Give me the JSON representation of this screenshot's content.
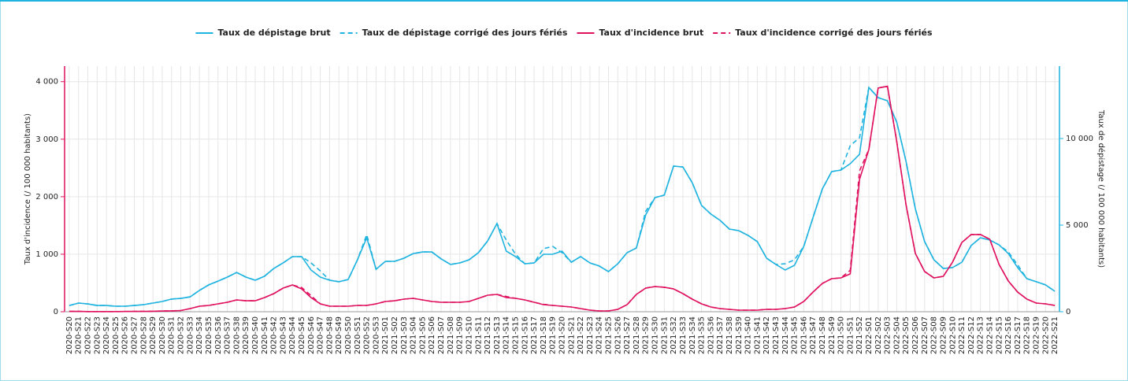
{
  "chart_data": {
    "type": "line",
    "y_label": "Taux d'incidence (/ 100 000 habitants)",
    "y2_label": "Taux de dépistage (/ 100 000 habitants)",
    "categories": [
      "2020-S20",
      "2020-S21",
      "2020-S22",
      "2020-S23",
      "2020-S24",
      "2020-S25",
      "2020-S26",
      "2020-S27",
      "2020-S28",
      "2020-S29",
      "2020-S30",
      "2020-S31",
      "2020-S32",
      "2020-S33",
      "2020-S34",
      "2020-S35",
      "2020-S36",
      "2020-S37",
      "2020-S38",
      "2020-S39",
      "2020-S40",
      "2020-S41",
      "2020-S42",
      "2020-S43",
      "2020-S44",
      "2020-S45",
      "2020-S46",
      "2020-S47",
      "2020-S48",
      "2020-S49",
      "2020-S50",
      "2020-S51",
      "2020-S52",
      "2020-S53",
      "2021-S01",
      "2021-S02",
      "2021-S03",
      "2021-S04",
      "2021-S05",
      "2021-S06",
      "2021-S07",
      "2021-S08",
      "2021-S09",
      "2021-S10",
      "2021-S11",
      "2021-S12",
      "2021-S13",
      "2021-S14",
      "2021-S15",
      "2021-S16",
      "2021-S17",
      "2021-S18",
      "2021-S19",
      "2021-S20",
      "2021-S21",
      "2021-S22",
      "2021-S23",
      "2021-S24",
      "2021-S25",
      "2021-S26",
      "2021-S27",
      "2021-S28",
      "2021-S29",
      "2021-S30",
      "2021-S31",
      "2021-S32",
      "2021-S33",
      "2021-S34",
      "2021-S35",
      "2021-S36",
      "2021-S37",
      "2021-S38",
      "2021-S39",
      "2021-S40",
      "2021-S41",
      "2021-S42",
      "2021-S43",
      "2021-S44",
      "2021-S45",
      "2021-S46",
      "2021-S47",
      "2021-S48",
      "2021-S49",
      "2021-S50",
      "2021-S51",
      "2021-S52",
      "2022-S01",
      "2022-S02",
      "2022-S03",
      "2022-S04",
      "2022-S05",
      "2022-S06",
      "2022-S07",
      "2022-S08",
      "2022-S09",
      "2022-S10",
      "2022-S11",
      "2022-S12",
      "2022-S13",
      "2022-S14",
      "2022-S15",
      "2022-S16",
      "2022-S17",
      "2022-S18",
      "2022-S19",
      "2022-S20",
      "2022-S21"
    ],
    "series": [
      {
        "name": "Taux de dépistage brut",
        "color": "#1fb3e0",
        "linestyle": "solid",
        "axis": "y2",
        "values": [
          360,
          500,
          450,
          360,
          360,
          320,
          320,
          360,
          410,
          500,
          590,
          730,
          770,
          860,
          1230,
          1550,
          1770,
          2000,
          2270,
          2000,
          1820,
          2050,
          2500,
          2820,
          3180,
          3180,
          2410,
          2000,
          1820,
          1730,
          1860,
          3000,
          4270,
          2450,
          2910,
          2910,
          3090,
          3360,
          3450,
          3450,
          3050,
          2730,
          2820,
          3000,
          3410,
          4090,
          5090,
          3500,
          3180,
          2770,
          2820,
          3320,
          3320,
          3500,
          2860,
          3180,
          2820,
          2640,
          2320,
          2770,
          3410,
          3680,
          5590,
          6590,
          6730,
          8410,
          8360,
          7450,
          6140,
          5640,
          5270,
          4770,
          4680,
          4410,
          4050,
          3090,
          2730,
          2410,
          2680,
          3770,
          5450,
          7090,
          8090,
          8180,
          8550,
          9090,
          12950,
          12360,
          12180,
          10950,
          8680,
          5950,
          4050,
          3000,
          2500,
          2550,
          2860,
          3820,
          4270,
          4140,
          3860,
          3360,
          2550,
          1910,
          1730,
          1550,
          1180
        ]
      },
      {
        "name": "Taux de dépistage corrigé des jours fériés",
        "color": "#1fb3e0",
        "linestyle": "dashed",
        "axis": "y2",
        "values": [
          360,
          500,
          450,
          360,
          360,
          320,
          320,
          360,
          410,
          500,
          590,
          730,
          770,
          860,
          1230,
          1550,
          1770,
          2000,
          2270,
          2000,
          1820,
          2050,
          2500,
          2820,
          3180,
          3180,
          2820,
          2360,
          1820,
          1730,
          1860,
          3000,
          4450,
          2450,
          2910,
          2910,
          3090,
          3360,
          3450,
          3450,
          3050,
          2730,
          2820,
          3000,
          3410,
          4090,
          5090,
          4140,
          3320,
          2770,
          2820,
          3640,
          3770,
          3410,
          2860,
          3180,
          2820,
          2640,
          2320,
          2770,
          3410,
          3680,
          5800,
          6590,
          6730,
          8410,
          8360,
          7450,
          6140,
          5640,
          5270,
          4770,
          4680,
          4410,
          4050,
          3090,
          2730,
          2770,
          3000,
          3770,
          5450,
          7090,
          8090,
          8180,
          9590,
          10050,
          12950,
          12360,
          12180,
          10950,
          8680,
          5950,
          4050,
          3000,
          2500,
          2550,
          2860,
          3820,
          4270,
          4140,
          3860,
          3450,
          2700,
          1910,
          1730,
          1550,
          1180
        ]
      },
      {
        "name": "Taux d'incidence brut",
        "color": "#e0115f",
        "linestyle": "solid",
        "axis": "y",
        "values": [
          5,
          5,
          3,
          3,
          3,
          3,
          4,
          5,
          6,
          8,
          12,
          15,
          20,
          55,
          96,
          110,
          137,
          164,
          205,
          190,
          190,
          247,
          315,
          411,
          466,
          397,
          247,
          137,
          96,
          96,
          96,
          110,
          110,
          137,
          178,
          190,
          219,
          233,
          205,
          178,
          164,
          164,
          164,
          178,
          233,
          288,
          301,
          247,
          233,
          205,
          164,
          123,
          110,
          96,
          82,
          55,
          27,
          14,
          14,
          41,
          123,
          301,
          411,
          438,
          425,
          397,
          315,
          219,
          137,
          82,
          55,
          41,
          27,
          27,
          27,
          41,
          41,
          55,
          82,
          178,
          342,
          493,
          575,
          589,
          658,
          2300,
          2820,
          3890,
          3920,
          2960,
          1860,
          1014,
          700,
          589,
          616,
          863,
          1205,
          1342,
          1342,
          1260,
          822,
          534,
          342,
          219,
          151,
          137,
          110
        ]
      },
      {
        "name": "Taux d'incidence corrigé des jours fériés",
        "color": "#e0115f",
        "linestyle": "dashed",
        "axis": "y",
        "values": [
          5,
          5,
          3,
          3,
          3,
          3,
          4,
          5,
          6,
          8,
          12,
          15,
          20,
          55,
          96,
          110,
          137,
          164,
          205,
          190,
          190,
          247,
          315,
          411,
          466,
          420,
          280,
          137,
          96,
          96,
          96,
          110,
          110,
          137,
          178,
          190,
          219,
          233,
          205,
          178,
          164,
          164,
          164,
          178,
          233,
          288,
          301,
          265,
          233,
          205,
          164,
          130,
          110,
          96,
          82,
          55,
          27,
          14,
          14,
          41,
          123,
          301,
          411,
          438,
          425,
          397,
          315,
          219,
          137,
          82,
          55,
          41,
          27,
          27,
          27,
          41,
          41,
          55,
          82,
          178,
          342,
          493,
          575,
          589,
          720,
          2450,
          2820,
          3890,
          3920,
          2960,
          1860,
          1014,
          700,
          589,
          616,
          863,
          1205,
          1342,
          1342,
          1260,
          822,
          534,
          342,
          219,
          151,
          137,
          110
        ]
      }
    ],
    "ylim": [
      0,
      4270
    ],
    "yticks": [
      0,
      {
        "value": 1000,
        "label": "1 000"
      },
      {
        "value": 2000,
        "label": "2 000"
      },
      {
        "value": 3000,
        "label": "3 000"
      },
      {
        "value": 4000,
        "label": "4 000"
      }
    ],
    "y2lim": [
      0,
      14180
    ],
    "y2ticks": [
      0,
      {
        "value": 5000,
        "label": "5 000"
      },
      {
        "value": 10000,
        "label": "10 000"
      }
    ],
    "y_color": "#e0115f",
    "y2_color": "#1fb3e0",
    "grid": true,
    "legend": "top"
  }
}
